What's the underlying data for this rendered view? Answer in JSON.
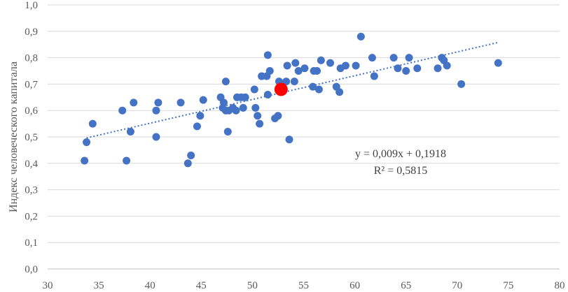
{
  "chart_data": {
    "type": "scatter",
    "title": "",
    "xlabel": "",
    "ylabel": "Индекс человеческого капитала",
    "xlim": [
      30,
      80
    ],
    "ylim": [
      0.0,
      1.0
    ],
    "x_ticks": [
      "30",
      "35",
      "40",
      "45",
      "50",
      "55",
      "60",
      "65",
      "70",
      "75",
      "80"
    ],
    "y_ticks": [
      "0,0",
      "0,1",
      "0,2",
      "0,3",
      "0,4",
      "0,5",
      "0,6",
      "0,7",
      "0,8",
      "0,9",
      "1,0"
    ],
    "grid": "horizontal",
    "colors": {
      "points": "#4472c4",
      "highlight": "#ff0000",
      "trendline": "#4472c4",
      "grid": "#d9d9d9"
    },
    "trendline": {
      "type": "linear",
      "slope": 0.009,
      "intercept": 0.1918,
      "x_range": [
        33.8,
        74
      ]
    },
    "annotations": [
      "y = 0,009x + 0,1918",
      "R² = 0,5815"
    ],
    "highlight_point": {
      "x": 52.8,
      "y": 0.68
    },
    "points": [
      {
        "x": 33.6,
        "y": 0.41
      },
      {
        "x": 33.8,
        "y": 0.48
      },
      {
        "x": 34.4,
        "y": 0.55
      },
      {
        "x": 37.3,
        "y": 0.6
      },
      {
        "x": 37.7,
        "y": 0.41
      },
      {
        "x": 38.1,
        "y": 0.52
      },
      {
        "x": 38.4,
        "y": 0.63
      },
      {
        "x": 40.6,
        "y": 0.6
      },
      {
        "x": 40.6,
        "y": 0.5
      },
      {
        "x": 40.8,
        "y": 0.63
      },
      {
        "x": 43.0,
        "y": 0.63
      },
      {
        "x": 43.7,
        "y": 0.4
      },
      {
        "x": 44.0,
        "y": 0.43
      },
      {
        "x": 44.6,
        "y": 0.54
      },
      {
        "x": 44.9,
        "y": 0.58
      },
      {
        "x": 45.2,
        "y": 0.64
      },
      {
        "x": 46.9,
        "y": 0.65
      },
      {
        "x": 47.1,
        "y": 0.61
      },
      {
        "x": 47.2,
        "y": 0.63
      },
      {
        "x": 47.4,
        "y": 0.71
      },
      {
        "x": 47.4,
        "y": 0.6
      },
      {
        "x": 47.6,
        "y": 0.52
      },
      {
        "x": 47.7,
        "y": 0.6
      },
      {
        "x": 48.1,
        "y": 0.61
      },
      {
        "x": 48.4,
        "y": 0.6
      },
      {
        "x": 48.5,
        "y": 0.65
      },
      {
        "x": 48.9,
        "y": 0.65
      },
      {
        "x": 49.1,
        "y": 0.61
      },
      {
        "x": 49.3,
        "y": 0.65
      },
      {
        "x": 50.2,
        "y": 0.68
      },
      {
        "x": 50.3,
        "y": 0.61
      },
      {
        "x": 50.5,
        "y": 0.58
      },
      {
        "x": 50.7,
        "y": 0.55
      },
      {
        "x": 50.9,
        "y": 0.73
      },
      {
        "x": 51.4,
        "y": 0.73
      },
      {
        "x": 51.5,
        "y": 0.81
      },
      {
        "x": 51.5,
        "y": 0.66
      },
      {
        "x": 51.7,
        "y": 0.75
      },
      {
        "x": 52.2,
        "y": 0.57
      },
      {
        "x": 52.5,
        "y": 0.58
      },
      {
        "x": 52.6,
        "y": 0.71
      },
      {
        "x": 53.3,
        "y": 0.71
      },
      {
        "x": 53.4,
        "y": 0.77
      },
      {
        "x": 53.6,
        "y": 0.49
      },
      {
        "x": 54.1,
        "y": 0.71
      },
      {
        "x": 54.2,
        "y": 0.78
      },
      {
        "x": 54.5,
        "y": 0.75
      },
      {
        "x": 55.1,
        "y": 0.76
      },
      {
        "x": 55.9,
        "y": 0.69
      },
      {
        "x": 56.0,
        "y": 0.75
      },
      {
        "x": 56.3,
        "y": 0.75
      },
      {
        "x": 56.5,
        "y": 0.68
      },
      {
        "x": 56.7,
        "y": 0.79
      },
      {
        "x": 57.6,
        "y": 0.78
      },
      {
        "x": 58.2,
        "y": 0.69
      },
      {
        "x": 58.5,
        "y": 0.67
      },
      {
        "x": 58.6,
        "y": 0.76
      },
      {
        "x": 59.1,
        "y": 0.77
      },
      {
        "x": 60.1,
        "y": 0.77
      },
      {
        "x": 60.6,
        "y": 0.88
      },
      {
        "x": 61.7,
        "y": 0.8
      },
      {
        "x": 61.9,
        "y": 0.73
      },
      {
        "x": 63.8,
        "y": 0.8
      },
      {
        "x": 64.2,
        "y": 0.76
      },
      {
        "x": 65.0,
        "y": 0.75
      },
      {
        "x": 65.3,
        "y": 0.8
      },
      {
        "x": 66.1,
        "y": 0.76
      },
      {
        "x": 68.1,
        "y": 0.76
      },
      {
        "x": 68.5,
        "y": 0.8
      },
      {
        "x": 68.7,
        "y": 0.79
      },
      {
        "x": 69.0,
        "y": 0.77
      },
      {
        "x": 70.4,
        "y": 0.7
      },
      {
        "x": 74.0,
        "y": 0.78
      }
    ]
  }
}
